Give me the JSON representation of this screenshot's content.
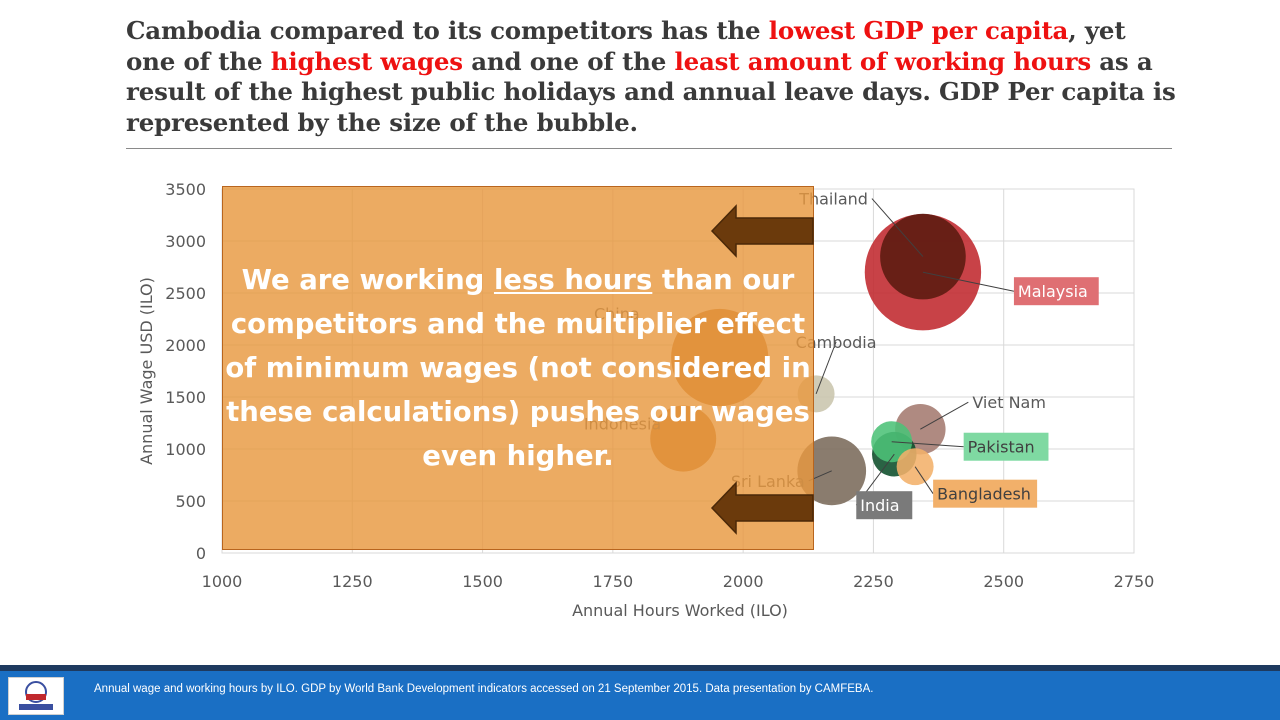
{
  "slide": {
    "title_parts": [
      {
        "text": "Cambodia compared to its competitors has the ",
        "highlight": false
      },
      {
        "text": "lowest GDP per capita",
        "highlight": true
      },
      {
        "text": ", yet one of the ",
        "highlight": false
      },
      {
        "text": "highest wages",
        "highlight": true
      },
      {
        "text": " and one of the ",
        "highlight": false
      },
      {
        "text": "least amount of working hours",
        "highlight": true
      },
      {
        "text": " as a result of the highest public holidays and annual leave days.  GDP Per capita is represented by the size of the bubble.",
        "highlight": false
      }
    ]
  },
  "callout": {
    "before": "We are working ",
    "underlined": "less hours",
    "after": " than our competitors and the multiplier effect of minimum wages (not considered in these calculations) pushes our wages even higher."
  },
  "footer": {
    "text": "Annual wage and working hours by ILO.  GDP by World Bank Development indicators accessed on 21 September 2015.  Data presentation by CAMFEBA."
  },
  "colors": {
    "title_highlight": "#ee1111",
    "callout_fill": "#e89840",
    "footer_bg": "#1a6fc4"
  },
  "chart_data": {
    "type": "bubble",
    "xlabel": "Annual Hours Worked (ILO)",
    "ylabel": "Annual Wage USD (ILO)",
    "xlim": [
      1000,
      2750
    ],
    "ylim": [
      0,
      3500
    ],
    "xticks": [
      1000,
      1250,
      1500,
      1750,
      2000,
      2250,
      2500,
      2750
    ],
    "yticks": [
      0,
      500,
      1000,
      1500,
      2000,
      2500,
      3000,
      3500
    ],
    "grid": true,
    "size_meaning": "GDP per capita",
    "series": [
      {
        "name": "Malaysia",
        "x": 2345,
        "y": 2700,
        "size": 10900,
        "color": "#c0282d",
        "label_fill": "#df6f73",
        "label_color": "#ffffff"
      },
      {
        "name": "Thailand",
        "x": 2345,
        "y": 2850,
        "size": 5900,
        "color": "#5a1a10",
        "label_fill": "",
        "label_color": "#595959"
      },
      {
        "name": "China",
        "x": 1955,
        "y": 1880,
        "size": 7600,
        "color": "#c06a1a",
        "label_fill": "",
        "label_color": "#595959"
      },
      {
        "name": "Indonesia",
        "x": 1885,
        "y": 1100,
        "size": 3500,
        "color": "#c06a1a",
        "label_fill": "",
        "label_color": "#595959"
      },
      {
        "name": "Cambodia",
        "x": 2140,
        "y": 1530,
        "size": 1100,
        "color": "#c9c5ad",
        "label_fill": "",
        "label_color": "#595959"
      },
      {
        "name": "Viet Nam",
        "x": 2340,
        "y": 1190,
        "size": 2050,
        "color": "#a47a6f",
        "label_fill": "",
        "label_color": "#595959"
      },
      {
        "name": "Pakistan",
        "x": 2285,
        "y": 1070,
        "size": 1350,
        "color": "#4cc178",
        "label_fill": "#7fd9a2",
        "label_color": "#404040"
      },
      {
        "name": "Sri Lanka",
        "x": 2170,
        "y": 790,
        "size": 3800,
        "color": "#7a6a5a",
        "label_fill": "",
        "label_color": "#595959"
      },
      {
        "name": "Bangladesh",
        "x": 2330,
        "y": 830,
        "size": 1100,
        "color": "#f2b06a",
        "label_fill": "#f2b06a",
        "label_color": "#404040"
      },
      {
        "name": "India",
        "x": 2290,
        "y": 950,
        "size": 1600,
        "color": "#0d4d2a",
        "label_fill": "#7a7a7a",
        "label_color": "#ffffff"
      }
    ]
  }
}
